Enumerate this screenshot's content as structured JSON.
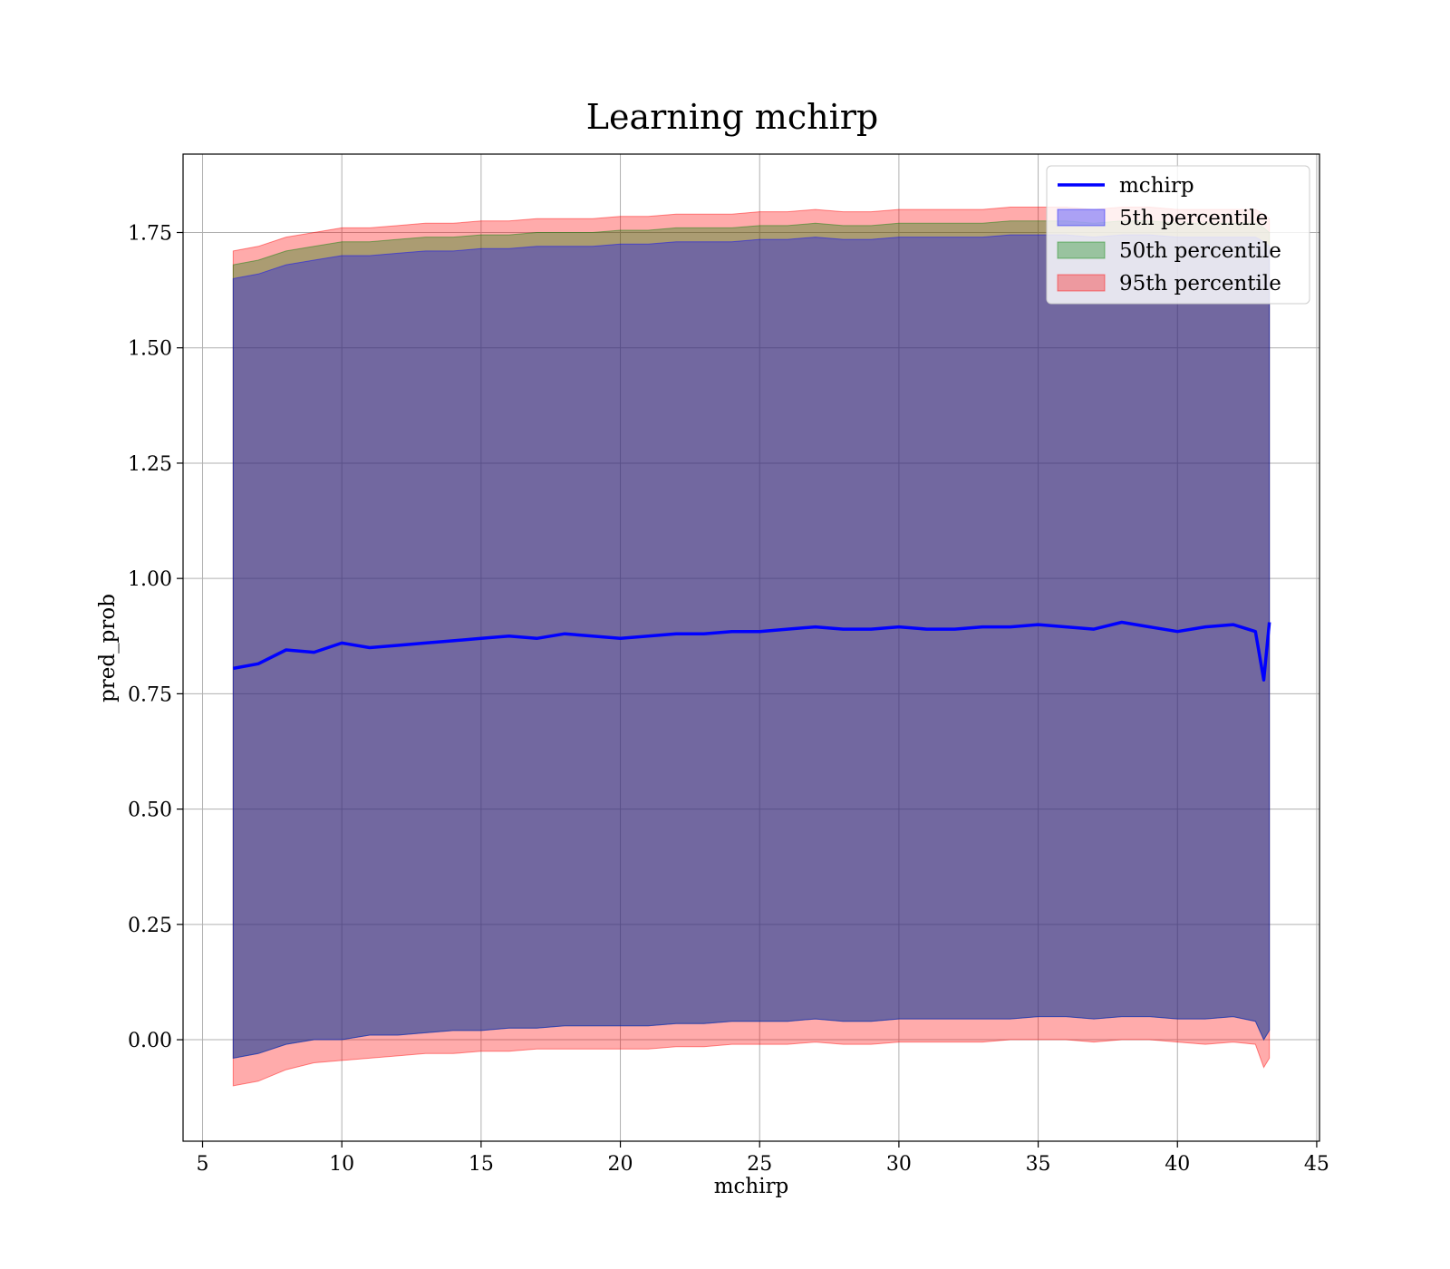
{
  "chart_data": {
    "type": "area",
    "title": "Learning mchirp",
    "xlabel": "mchirp",
    "ylabel": "pred_prob",
    "xlim": [
      4.3,
      45.1
    ],
    "ylim": [
      -0.22,
      1.92
    ],
    "xticks": [
      5,
      10,
      15,
      20,
      25,
      30,
      35,
      40,
      45
    ],
    "xtick_labels": [
      "5",
      "10",
      "15",
      "20",
      "25",
      "30",
      "35",
      "40",
      "45"
    ],
    "yticks": [
      0.0,
      0.25,
      0.5,
      0.75,
      1.0,
      1.25,
      1.5,
      1.75
    ],
    "ytick_labels": [
      "0.00",
      "0.25",
      "0.50",
      "0.75",
      "1.00",
      "1.25",
      "1.50",
      "1.75"
    ],
    "grid": true,
    "legend_position": "top-right",
    "x": [
      6.1,
      7.0,
      8.0,
      9.0,
      10.0,
      11.0,
      12.0,
      13.0,
      14.0,
      15.0,
      16.0,
      17.0,
      18.0,
      19.0,
      20.0,
      21.0,
      22.0,
      23.0,
      24.0,
      25.0,
      26.0,
      27.0,
      28.0,
      29.0,
      30.0,
      31.0,
      32.0,
      33.0,
      34.0,
      35.0,
      36.0,
      37.0,
      38.0,
      39.0,
      40.0,
      41.0,
      42.0,
      42.8,
      43.1,
      43.3
    ],
    "series": [
      {
        "name": "mchirp",
        "kind": "line",
        "color": "#0000ff",
        "values": [
          0.805,
          0.815,
          0.845,
          0.84,
          0.86,
          0.85,
          0.855,
          0.86,
          0.865,
          0.87,
          0.875,
          0.87,
          0.88,
          0.875,
          0.87,
          0.875,
          0.88,
          0.88,
          0.885,
          0.885,
          0.89,
          0.895,
          0.89,
          0.89,
          0.895,
          0.89,
          0.89,
          0.895,
          0.895,
          0.9,
          0.895,
          0.89,
          0.905,
          0.895,
          0.885,
          0.895,
          0.9,
          0.885,
          0.78,
          0.905
        ]
      },
      {
        "name": "5th percentile",
        "kind": "band",
        "color": "#0000ff",
        "upper": [
          1.65,
          1.66,
          1.68,
          1.69,
          1.7,
          1.7,
          1.705,
          1.71,
          1.71,
          1.715,
          1.715,
          1.72,
          1.72,
          1.72,
          1.725,
          1.725,
          1.73,
          1.73,
          1.73,
          1.735,
          1.735,
          1.74,
          1.735,
          1.735,
          1.74,
          1.74,
          1.74,
          1.74,
          1.745,
          1.745,
          1.745,
          1.74,
          1.745,
          1.745,
          1.74,
          1.74,
          1.74,
          1.74,
          1.73,
          1.72
        ],
        "lower": [
          -0.04,
          -0.03,
          -0.01,
          0.0,
          0.0,
          0.01,
          0.01,
          0.015,
          0.02,
          0.02,
          0.025,
          0.025,
          0.03,
          0.03,
          0.03,
          0.03,
          0.035,
          0.035,
          0.04,
          0.04,
          0.04,
          0.045,
          0.04,
          0.04,
          0.045,
          0.045,
          0.045,
          0.045,
          0.045,
          0.05,
          0.05,
          0.045,
          0.05,
          0.05,
          0.045,
          0.045,
          0.05,
          0.04,
          0.0,
          0.02
        ]
      },
      {
        "name": "50th percentile",
        "kind": "band",
        "color": "#008000",
        "upper": [
          1.68,
          1.69,
          1.71,
          1.72,
          1.73,
          1.73,
          1.735,
          1.74,
          1.74,
          1.745,
          1.745,
          1.75,
          1.75,
          1.75,
          1.755,
          1.755,
          1.76,
          1.76,
          1.76,
          1.765,
          1.765,
          1.77,
          1.765,
          1.765,
          1.77,
          1.77,
          1.77,
          1.77,
          1.775,
          1.775,
          1.775,
          1.77,
          1.775,
          1.775,
          1.77,
          1.77,
          1.77,
          1.77,
          1.76,
          1.75
        ],
        "lower": [
          -0.04,
          -0.03,
          -0.01,
          0.0,
          0.0,
          0.01,
          0.01,
          0.015,
          0.02,
          0.02,
          0.025,
          0.025,
          0.03,
          0.03,
          0.03,
          0.03,
          0.035,
          0.035,
          0.04,
          0.04,
          0.04,
          0.045,
          0.04,
          0.04,
          0.045,
          0.045,
          0.045,
          0.045,
          0.045,
          0.05,
          0.05,
          0.045,
          0.05,
          0.05,
          0.045,
          0.045,
          0.05,
          0.04,
          0.0,
          0.02
        ]
      },
      {
        "name": "95th percentile",
        "kind": "band",
        "color": "#ff0000",
        "upper": [
          1.71,
          1.72,
          1.74,
          1.75,
          1.76,
          1.76,
          1.765,
          1.77,
          1.77,
          1.775,
          1.775,
          1.78,
          1.78,
          1.78,
          1.785,
          1.785,
          1.79,
          1.79,
          1.79,
          1.795,
          1.795,
          1.8,
          1.795,
          1.795,
          1.8,
          1.8,
          1.8,
          1.8,
          1.805,
          1.805,
          1.805,
          1.8,
          1.805,
          1.805,
          1.8,
          1.8,
          1.8,
          1.8,
          1.79,
          1.78
        ],
        "lower": [
          -0.1,
          -0.09,
          -0.065,
          -0.05,
          -0.045,
          -0.04,
          -0.035,
          -0.03,
          -0.03,
          -0.025,
          -0.025,
          -0.02,
          -0.02,
          -0.02,
          -0.02,
          -0.02,
          -0.015,
          -0.015,
          -0.01,
          -0.01,
          -0.01,
          -0.005,
          -0.01,
          -0.01,
          -0.005,
          -0.005,
          -0.005,
          -0.005,
          0.0,
          0.0,
          0.0,
          -0.005,
          0.0,
          0.0,
          -0.005,
          -0.01,
          -0.005,
          -0.01,
          -0.06,
          -0.04
        ]
      }
    ]
  }
}
